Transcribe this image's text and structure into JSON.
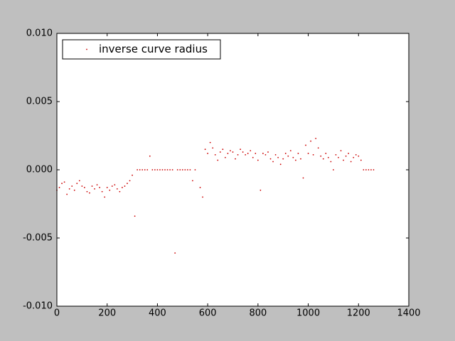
{
  "chart_data": {
    "type": "scatter",
    "series": [
      {
        "name": "inverse curve radius",
        "color": "#cc0000",
        "x": [
          0,
          10,
          20,
          30,
          40,
          50,
          60,
          70,
          80,
          90,
          100,
          110,
          120,
          130,
          140,
          150,
          160,
          170,
          180,
          190,
          200,
          210,
          220,
          230,
          240,
          250,
          260,
          270,
          280,
          290,
          300,
          310,
          320,
          330,
          340,
          350,
          360,
          370,
          380,
          390,
          400,
          410,
          420,
          430,
          440,
          450,
          460,
          470,
          480,
          490,
          500,
          510,
          520,
          530,
          540,
          550,
          570,
          580,
          590,
          600,
          610,
          620,
          630,
          640,
          650,
          660,
          670,
          680,
          690,
          700,
          710,
          720,
          730,
          740,
          750,
          760,
          770,
          780,
          790,
          800,
          810,
          820,
          830,
          840,
          850,
          860,
          870,
          880,
          890,
          900,
          910,
          920,
          930,
          940,
          950,
          960,
          970,
          980,
          990,
          1000,
          1010,
          1020,
          1030,
          1040,
          1050,
          1060,
          1070,
          1080,
          1090,
          1100,
          1110,
          1120,
          1130,
          1140,
          1150,
          1160,
          1170,
          1180,
          1190,
          1200,
          1210,
          1220,
          1230,
          1240,
          1250,
          1260
        ],
        "values": [
          -0.0015,
          -0.0013,
          -0.001,
          -0.0009,
          -0.0018,
          -0.0014,
          -0.0012,
          -0.0015,
          -0.001,
          -0.0008,
          -0.0012,
          -0.0013,
          -0.0016,
          -0.0017,
          -0.0012,
          -0.0014,
          -0.0011,
          -0.0013,
          -0.0016,
          -0.002,
          -0.0013,
          -0.0015,
          -0.0012,
          -0.0011,
          -0.0014,
          -0.0016,
          -0.0013,
          -0.0012,
          -0.001,
          -0.0008,
          -0.0004,
          -0.0034,
          0,
          0,
          0,
          0,
          0,
          0.001,
          0,
          0,
          0,
          0,
          0,
          0,
          0,
          0,
          0,
          -0.0061,
          0,
          0,
          0,
          0,
          0,
          0,
          -0.0008,
          0,
          -0.0013,
          -0.002,
          0.0015,
          0.0012,
          0.002,
          0.0016,
          0.0011,
          0.0007,
          0.0013,
          0.0015,
          0.0009,
          0.0012,
          0.0014,
          0.0013,
          0.0008,
          0.0011,
          0.0015,
          0.0013,
          0.0011,
          0.0012,
          0.0014,
          0.0009,
          0.0012,
          0.0007,
          -0.0015,
          0.0012,
          0.0011,
          0.0013,
          0.0008,
          0.0006,
          0.0011,
          0.0009,
          0.0004,
          0.0008,
          0.0012,
          0.001,
          0.0014,
          0.0009,
          0.0007,
          0.0012,
          0.0008,
          -0.0006,
          0.0018,
          0.0012,
          0.0021,
          0.0011,
          0.0023,
          0.0016,
          0.001,
          0.0008,
          0.0012,
          0.0009,
          0.0006,
          0,
          0.0011,
          0.0009,
          0.0014,
          0.0007,
          0.001,
          0.0012,
          0.0006,
          0.0009,
          0.0011,
          0.001,
          0.0007,
          0,
          0,
          0,
          0,
          0
        ]
      }
    ],
    "xlim": [
      0,
      1400
    ],
    "xticks": [
      0,
      200,
      400,
      600,
      800,
      1000,
      1200,
      1400
    ],
    "ylim": [
      -0.01,
      0.01
    ],
    "yticks": [
      {
        "value": -0.01,
        "label": "-0.010"
      },
      {
        "value": -0.005,
        "label": "-0.005"
      },
      {
        "value": 0,
        "label": "0.000"
      },
      {
        "value": 0.005,
        "label": "0.005"
      },
      {
        "value": 0.01,
        "label": "0.010"
      }
    ],
    "legend": "upper left",
    "grid": false
  }
}
